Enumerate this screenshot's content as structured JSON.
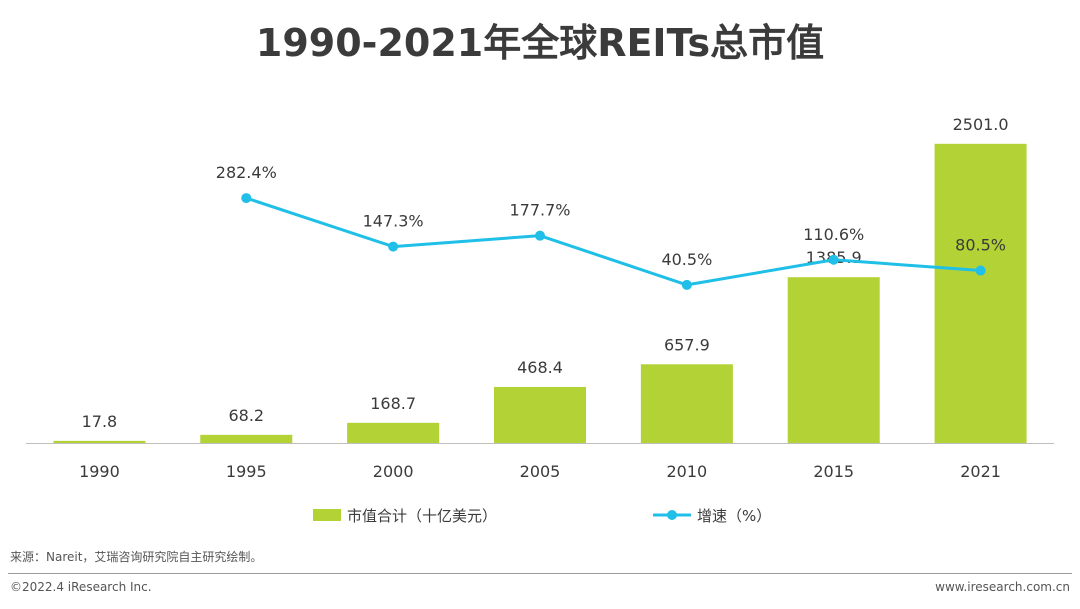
{
  "title": "1990-2021年全球REITs总市值",
  "colors": {
    "bar": "#b2d235",
    "line": "#1fbfe8",
    "axis": "#bfbfbf",
    "text": "#3b3b3b"
  },
  "chart_data": {
    "type": "bar",
    "title": "1990-2021年全球REITs总市值",
    "categories": [
      "1990",
      "1995",
      "2000",
      "2005",
      "2010",
      "2015",
      "2021"
    ],
    "series": [
      {
        "name": "市值合计（十亿美元）",
        "type": "bar",
        "values": [
          17.8,
          68.2,
          168.7,
          468.4,
          657.9,
          1385.9,
          2501.0
        ],
        "labels": [
          "17.8",
          "68.2",
          "168.7",
          "468.4",
          "657.9",
          "1385.9",
          "2501.0"
        ]
      },
      {
        "name": "增速（%）",
        "type": "line",
        "values": [
          null,
          282.4,
          147.3,
          177.7,
          40.5,
          110.6,
          80.5
        ],
        "labels": [
          "",
          "282.4%",
          "147.3%",
          "177.7%",
          "40.5%",
          "110.6%",
          "80.5%"
        ]
      }
    ],
    "xlabel": "",
    "ylabel": "",
    "ylim": [
      0,
      2700
    ],
    "y2lim": [
      -400,
      500
    ],
    "grid": false,
    "legend": "bottom"
  },
  "footnote": "来源：Nareit，艾瑞咨询研究院自主研究绘制。",
  "copyright": "©2022.4 iResearch Inc.",
  "website": "www.iresearch.com.cn"
}
